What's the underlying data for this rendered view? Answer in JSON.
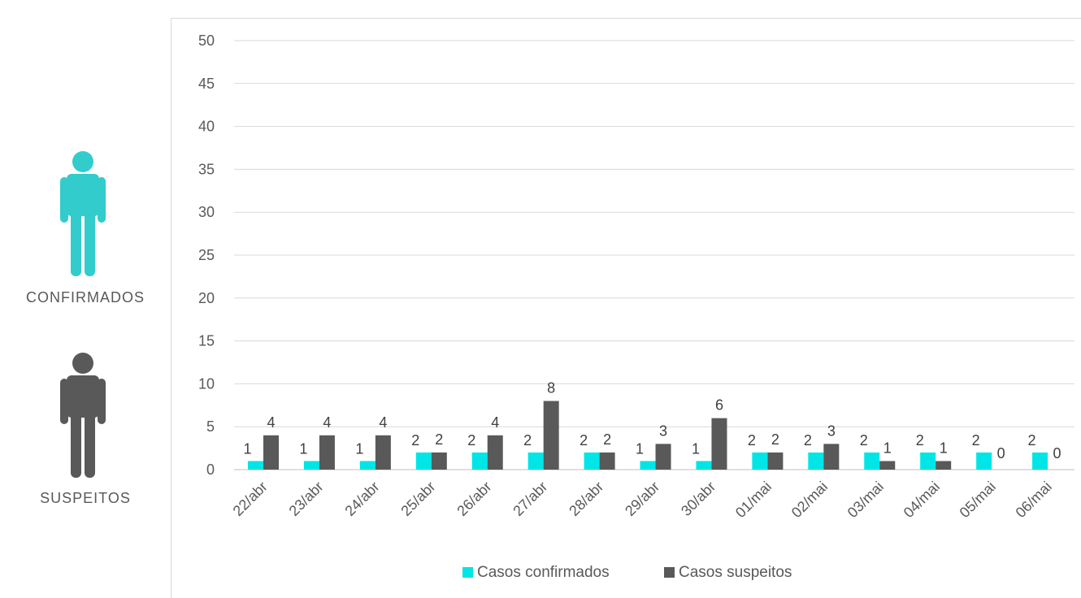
{
  "left_panel": {
    "confirmed_label": "CONFIRMADOS",
    "suspected_label": "SUSPEITOS",
    "confirmed_icon": "person-icon",
    "suspected_icon": "person-icon"
  },
  "colors": {
    "confirmed": "#00e5e5",
    "suspected": "#595959",
    "confirmed_icon": "#33cccc",
    "suspected_icon": "#595959"
  },
  "chart_data": {
    "type": "bar",
    "categories": [
      "22/abr",
      "23/abr",
      "24/abr",
      "25/abr",
      "26/abr",
      "27/abr",
      "28/abr",
      "29/abr",
      "30/abr",
      "01/mai",
      "02/mai",
      "03/mai",
      "04/mai",
      "05/mai",
      "06/mai"
    ],
    "series": [
      {
        "name": "Casos confirmados",
        "values": [
          1,
          1,
          1,
          2,
          2,
          2,
          2,
          1,
          1,
          2,
          2,
          2,
          2,
          2,
          2
        ]
      },
      {
        "name": "Casos suspeitos",
        "values": [
          4,
          4,
          4,
          2,
          4,
          8,
          2,
          3,
          6,
          2,
          3,
          1,
          1,
          0,
          0
        ]
      }
    ],
    "ylim": [
      0,
      50
    ],
    "yticks": [
      0,
      5,
      10,
      15,
      20,
      25,
      30,
      35,
      40,
      45,
      50
    ],
    "grid": true,
    "legend": "bottom",
    "data_labels": true
  }
}
